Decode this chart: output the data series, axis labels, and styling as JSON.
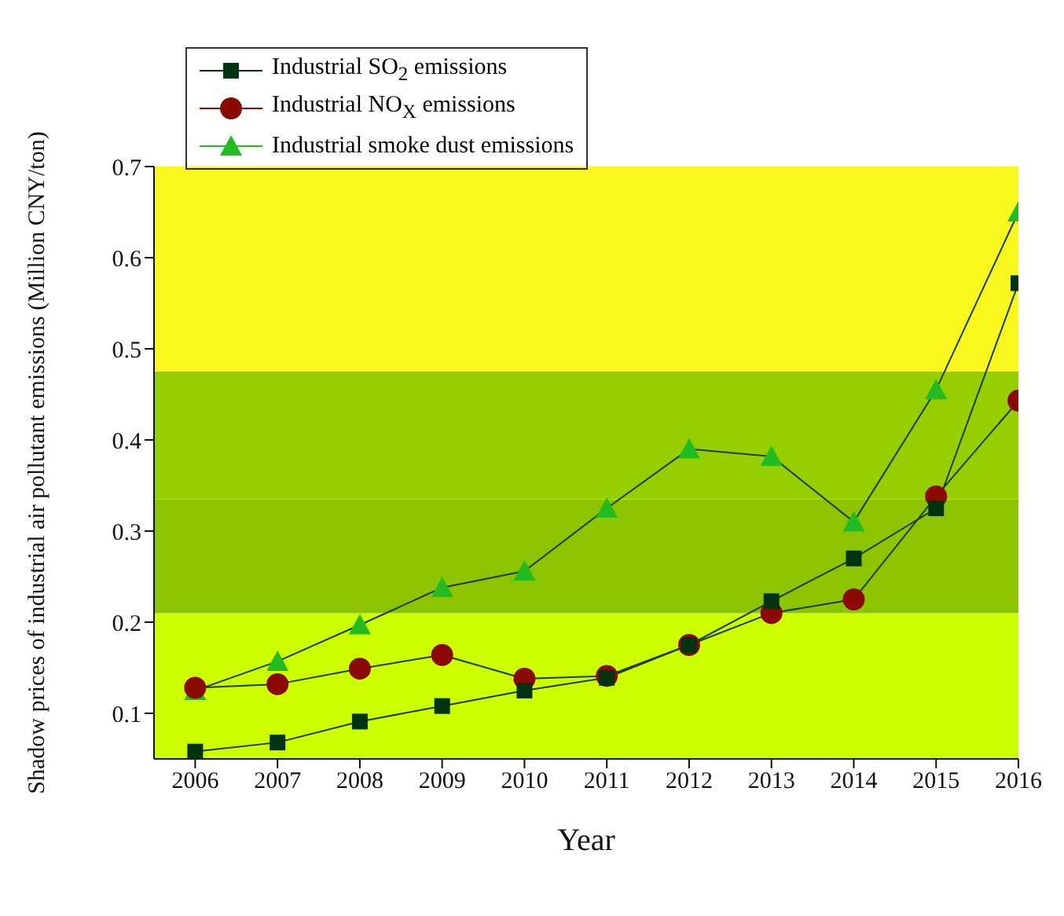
{
  "chart_data": {
    "type": "line",
    "xlabel": "Year",
    "ylabel": "Shadow prices of industrial air pollutant emissions (Million CNY/ton)",
    "x": [
      2006,
      2007,
      2008,
      2009,
      2010,
      2011,
      2012,
      2013,
      2014,
      2015,
      2016
    ],
    "series": [
      {
        "name": "Industrial SO$_{2}$ emissions",
        "color": "#003311",
        "marker": "square",
        "values": [
          0.058,
          0.068,
          0.091,
          0.108,
          0.125,
          0.139,
          0.175,
          0.223,
          0.27,
          0.325,
          0.572
        ]
      },
      {
        "name": "Industrial NO$_{X}$ emissions",
        "color": "#8b0a00",
        "marker": "circle",
        "values": [
          0.128,
          0.132,
          0.149,
          0.164,
          0.138,
          0.141,
          0.175,
          0.21,
          0.225,
          0.338,
          0.443
        ]
      },
      {
        "name": "Industrial smoke dust emissions",
        "color": "#22bb22",
        "marker": "triangle",
        "values": [
          0.125,
          0.157,
          0.197,
          0.238,
          0.256,
          0.325,
          0.39,
          0.382,
          0.31,
          0.455,
          0.65
        ]
      }
    ],
    "xlim": [
      2005.5,
      2016
    ],
    "xticks": [
      2006,
      2007,
      2008,
      2009,
      2010,
      2011,
      2012,
      2013,
      2014,
      2015,
      2016
    ],
    "ylim": [
      0.05,
      0.7
    ],
    "yticks": [
      0.1,
      0.2,
      0.3,
      0.4,
      0.5,
      0.6,
      0.7
    ],
    "bands": [
      {
        "axis": "y",
        "from": 0.05,
        "to": 0.21,
        "color": "#ccff00"
      },
      {
        "axis": "y",
        "from": 0.21,
        "to": 0.335,
        "color": "#8cc400"
      },
      {
        "axis": "y",
        "from": 0.335,
        "to": 0.475,
        "color": "#96cf00"
      },
      {
        "axis": "y",
        "from": 0.475,
        "to": 0.7,
        "color": "#f8f81e"
      }
    ],
    "legend": "top left",
    "grid": false,
    "line_style": "solid"
  }
}
